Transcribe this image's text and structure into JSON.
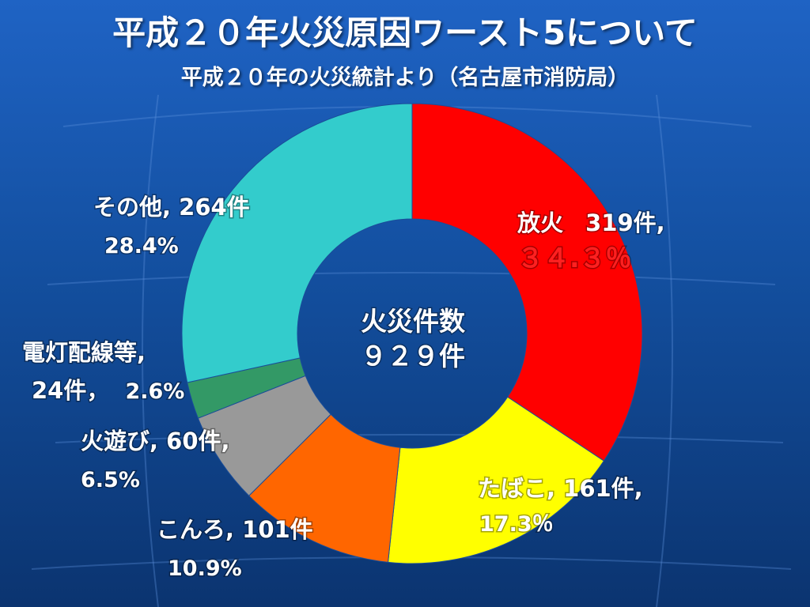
{
  "page": {
    "title": "平成２０年火災原因ワースト5について",
    "subtitle": "平成２０年の火災統計より（名古屋市消防局）"
  },
  "chart_data": {
    "type": "pie",
    "center_label": [
      "火災件数",
      "９２９件"
    ],
    "slices": [
      {
        "name": "放火",
        "value": 319,
        "percent_text": "３４.３％",
        "count_text": "319件,",
        "color": "#ff0000"
      },
      {
        "name": "たばこ",
        "value": 161,
        "percent_text": "17.3％",
        "count_text": "161件,",
        "color": "#ffff00"
      },
      {
        "name": "こんろ",
        "value": 101,
        "percent_text": "10.9%",
        "count_text": "101件",
        "color": "#ff6600"
      },
      {
        "name": "火遊び",
        "value": 60,
        "percent_text": "6.5%",
        "count_text": "60件,",
        "color": "#999999"
      },
      {
        "name": "電灯配線等",
        "value": 24,
        "percent_text": "2.6%",
        "count_text": "24件，",
        "color": "#339966"
      },
      {
        "name": "その他",
        "value": 264,
        "percent_text": "28.4%",
        "count_text": "264件",
        "color": "#33cccc"
      }
    ]
  }
}
